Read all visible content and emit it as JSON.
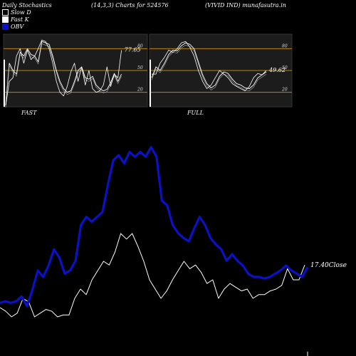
{
  "header": {
    "left": "Daily Stochastics",
    "center": "(14,3,3) Charts for 524576",
    "right": "(VIVID IND) munafasutra.in"
  },
  "legend": [
    {
      "label": "Slow  D",
      "style": "hollow"
    },
    {
      "label": "Fast K",
      "style": "filled"
    },
    {
      "label": "OBV",
      "style": "obv"
    }
  ],
  "colors": {
    "background": "#000000",
    "panel_bg": "#1c1c1c",
    "band_line": "#b8860b",
    "stoch_line": "#ffffff",
    "obv_line": "#0a11c6",
    "price_line": "#ffffff"
  },
  "chart_data": [
    {
      "type": "line",
      "name": "FAST",
      "title": "FAST",
      "ylim": [
        0,
        100
      ],
      "reference_lines": [
        20,
        50,
        80
      ],
      "y_tick_labels": [
        "80",
        "50",
        "20"
      ],
      "last_value_label": "77.65",
      "series": [
        {
          "name": "Slow  D",
          "values": [
            2,
            60,
            50,
            45,
            75,
            70,
            80,
            72,
            70,
            62,
            90,
            88,
            86,
            70,
            50,
            35,
            25,
            20,
            22,
            35,
            50,
            55,
            40,
            38,
            42,
            30,
            25,
            22,
            24,
            33,
            46,
            35,
            45
          ]
        },
        {
          "name": "Fast K",
          "values": [
            2,
            35,
            40,
            70,
            80,
            60,
            78,
            65,
            70,
            80,
            92,
            90,
            80,
            60,
            35,
            20,
            15,
            28,
            48,
            60,
            35,
            55,
            30,
            50,
            25,
            20,
            22,
            30,
            55,
            28,
            45,
            40,
            78
          ]
        }
      ]
    },
    {
      "type": "line",
      "name": "FULL",
      "title": "FULL",
      "ylim": [
        0,
        100
      ],
      "reference_lines": [
        20,
        50,
        80
      ],
      "y_tick_labels": [
        "80",
        "50",
        "20"
      ],
      "last_value_label": "49.62",
      "series": [
        {
          "name": "Slow  D",
          "values": [
            40,
            55,
            50,
            60,
            72,
            78,
            77,
            84,
            88,
            86,
            80,
            62,
            44,
            32,
            26,
            30,
            42,
            48,
            46,
            38,
            32,
            30,
            26,
            25,
            30,
            40,
            44,
            48
          ]
        },
        {
          "name": "Fast K",
          "values": [
            45,
            45,
            60,
            68,
            78,
            75,
            80,
            88,
            90,
            82,
            70,
            50,
            35,
            25,
            30,
            40,
            50,
            45,
            40,
            32,
            28,
            25,
            22,
            28,
            40,
            46,
            44,
            50
          ]
        }
      ]
    },
    {
      "type": "line",
      "name": "OBV and price",
      "last_value_label": "17.40Close",
      "series": [
        {
          "name": "OBV",
          "values": [
            2,
            3,
            2,
            3,
            6,
            0,
            10,
            22,
            18,
            25,
            35,
            30,
            20,
            22,
            28,
            50,
            55,
            52,
            55,
            58,
            75,
            90,
            93,
            88,
            95,
            92,
            95,
            92,
            98,
            92,
            65,
            62,
            50,
            45,
            42,
            40,
            48,
            55,
            50,
            42,
            38,
            35,
            28,
            32,
            28,
            25,
            20,
            18,
            18,
            17,
            18,
            20,
            22,
            25,
            22,
            20,
            18,
            24
          ]
        },
        {
          "name": "Price",
          "values": [
            5,
            3,
            0,
            2,
            10,
            8,
            0,
            2,
            4,
            3,
            0,
            1,
            1,
            10,
            15,
            12,
            20,
            25,
            30,
            28,
            35,
            45,
            42,
            45,
            38,
            30,
            20,
            15,
            10,
            14,
            20,
            25,
            30,
            26,
            28,
            24,
            18,
            20,
            10,
            15,
            18,
            16,
            14,
            15,
            10,
            12,
            12,
            14,
            15,
            17,
            26,
            20,
            20,
            28
          ]
        }
      ]
    }
  ]
}
